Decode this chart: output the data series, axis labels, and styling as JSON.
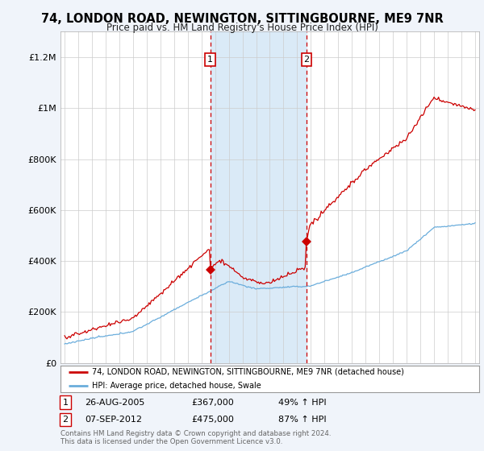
{
  "title": "74, LONDON ROAD, NEWINGTON, SITTINGBOURNE, ME9 7NR",
  "subtitle": "Price paid vs. HM Land Registry's House Price Index (HPI)",
  "background_color": "#f0f4fa",
  "plot_bg_color": "#ffffff",
  "ylim": [
    0,
    1300000
  ],
  "yticks": [
    0,
    200000,
    400000,
    600000,
    800000,
    1000000,
    1200000
  ],
  "ytick_labels": [
    "£0",
    "£200K",
    "£400K",
    "£600K",
    "£800K",
    "£1M",
    "£1.2M"
  ],
  "sale1_date_num": 2005.65,
  "sale1_price": 367000,
  "sale2_date_num": 2012.68,
  "sale2_price": 475000,
  "line_color_house": "#cc0000",
  "line_color_hpi": "#6aaddc",
  "shade_color": "#daeaf7",
  "legend_label_house": "74, LONDON ROAD, NEWINGTON, SITTINGBOURNE, ME9 7NR (detached house)",
  "legend_label_hpi": "HPI: Average price, detached house, Swale",
  "sale1_date_str": "26-AUG-2005",
  "sale1_pct": "49%",
  "sale2_date_str": "07-SEP-2012",
  "sale2_pct": "87%",
  "footer_line1": "Contains HM Land Registry data © Crown copyright and database right 2024.",
  "footer_line2": "This data is licensed under the Open Government Licence v3.0.",
  "xmin": 1994.7,
  "xmax": 2025.3,
  "xticks": [
    1995,
    1996,
    1997,
    1998,
    1999,
    2000,
    2001,
    2002,
    2003,
    2004,
    2005,
    2006,
    2007,
    2008,
    2009,
    2010,
    2011,
    2012,
    2013,
    2014,
    2015,
    2016,
    2017,
    2018,
    2019,
    2020,
    2021,
    2022,
    2023,
    2024,
    2025
  ]
}
